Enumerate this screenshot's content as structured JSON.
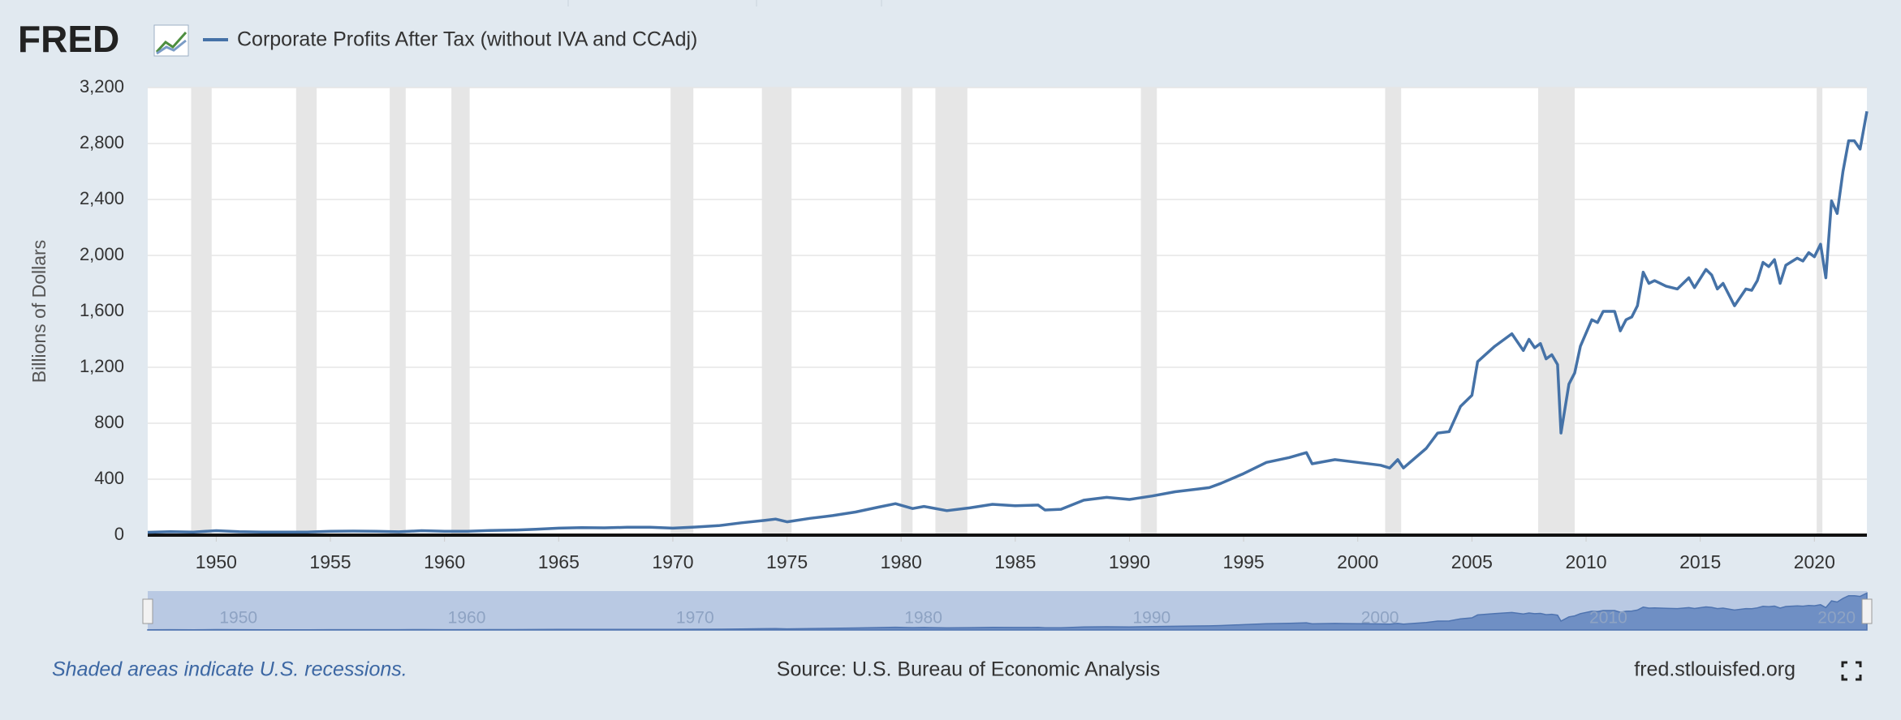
{
  "logo": "FRED",
  "footer": {
    "note": "Shaded areas indicate U.S. recessions.",
    "source": "Source: U.S. Bureau of Economic Analysis",
    "site": "fred.stlouisfed.org"
  },
  "chart_data": {
    "type": "line",
    "y_label": "Billions of Dollars",
    "x": [
      1947,
      1948,
      1949,
      1950,
      1951,
      1952,
      1953,
      1954,
      1955,
      1956,
      1957,
      1958,
      1959,
      1960,
      1961,
      1962,
      1963,
      1964,
      1965,
      1966,
      1967,
      1968,
      1969,
      1970,
      1971,
      1972,
      1973,
      1974,
      1974.5,
      1975,
      1976,
      1977,
      1978,
      1979,
      1979.75,
      1980.5,
      1981,
      1982,
      1983,
      1984,
      1985,
      1986,
      1986.3,
      1987,
      1988,
      1989,
      1990,
      1991,
      1992,
      1993,
      1993.5,
      1994,
      1995,
      1996,
      1997,
      1997.75,
      1998,
      1999,
      2000,
      2001,
      2001.4,
      2001.75,
      2002,
      2003,
      2003.5,
      2004,
      2004.5,
      2005,
      2005.25,
      2006,
      2006.75,
      2007.25,
      2007.5,
      2007.75,
      2008,
      2008.25,
      2008.5,
      2008.75,
      2008.9,
      2009.25,
      2009.5,
      2009.75,
      2010.25,
      2010.5,
      2010.75,
      2011.25,
      2011.5,
      2011.75,
      2012,
      2012.25,
      2012.5,
      2012.75,
      2013,
      2013.5,
      2014,
      2014.5,
      2014.75,
      2015.25,
      2015.5,
      2015.75,
      2016,
      2016.5,
      2017,
      2017.25,
      2017.5,
      2017.75,
      2018,
      2018.25,
      2018.5,
      2018.75,
      2019.25,
      2019.5,
      2019.75,
      2020,
      2020.27,
      2020.5,
      2020.75,
      2021,
      2021.25,
      2021.5,
      2021.75,
      2022,
      2022.3
    ],
    "series": [
      {
        "name": "Corporate Profits After Tax (without IVA and CCAdj)",
        "color": "#4572a7",
        "values": [
          20,
          25,
          22,
          32,
          25,
          22,
          22,
          22,
          28,
          29,
          28,
          24,
          32,
          28,
          28,
          33,
          36,
          42,
          50,
          54,
          52,
          56,
          56,
          50,
          58,
          68,
          88,
          105,
          115,
          95,
          120,
          140,
          165,
          200,
          225,
          190,
          205,
          175,
          195,
          220,
          210,
          215,
          180,
          185,
          250,
          270,
          255,
          280,
          310,
          330,
          340,
          370,
          440,
          520,
          555,
          590,
          510,
          540,
          520,
          500,
          480,
          540,
          480,
          620,
          730,
          740,
          920,
          1000,
          1240,
          1350,
          1440,
          1320,
          1400,
          1340,
          1370,
          1260,
          1290,
          1220,
          730,
          1080,
          1160,
          1350,
          1540,
          1520,
          1600,
          1600,
          1460,
          1540,
          1560,
          1640,
          1880,
          1800,
          1820,
          1780,
          1760,
          1840,
          1770,
          1900,
          1860,
          1760,
          1800,
          1640,
          1760,
          1750,
          1820,
          1950,
          1920,
          1970,
          1800,
          1930,
          1980,
          1960,
          2020,
          1990,
          2080,
          1840,
          2390,
          2300,
          2600,
          2820,
          2820,
          2760,
          3030
        ]
      }
    ],
    "xlim": [
      1947,
      2022.3
    ],
    "xticks": [
      1950,
      1955,
      1960,
      1965,
      1970,
      1975,
      1980,
      1985,
      1990,
      1995,
      2000,
      2005,
      2010,
      2015,
      2020
    ],
    "ylim": [
      0,
      3200
    ],
    "yticks": [
      0,
      400,
      800,
      {
        "value": 1200,
        "label": "1,200"
      },
      {
        "value": 1600,
        "label": "1,600"
      },
      {
        "value": 2000,
        "label": "2,000"
      },
      {
        "value": 2400,
        "label": "2,400"
      },
      {
        "value": 2800,
        "label": "2,800"
      },
      {
        "value": 3200,
        "label": "3,200"
      }
    ],
    "grid": true,
    "recession_color": "#e6e6e6",
    "recessions": [
      [
        1948.9,
        1949.8
      ],
      [
        1953.5,
        1954.4
      ],
      [
        1957.6,
        1958.3
      ],
      [
        1960.3,
        1961.1
      ],
      [
        1969.9,
        1970.9
      ],
      [
        1973.9,
        1975.2
      ],
      [
        1980.0,
        1980.5
      ],
      [
        1981.5,
        1982.9
      ],
      [
        1990.5,
        1991.2
      ],
      [
        2001.2,
        2001.9
      ],
      [
        2007.9,
        2009.5
      ],
      [
        2020.1,
        2020.35
      ]
    ],
    "navigator_ticks": [
      1950,
      1960,
      1970,
      1980,
      1990,
      2000,
      2010,
      2020
    ]
  }
}
